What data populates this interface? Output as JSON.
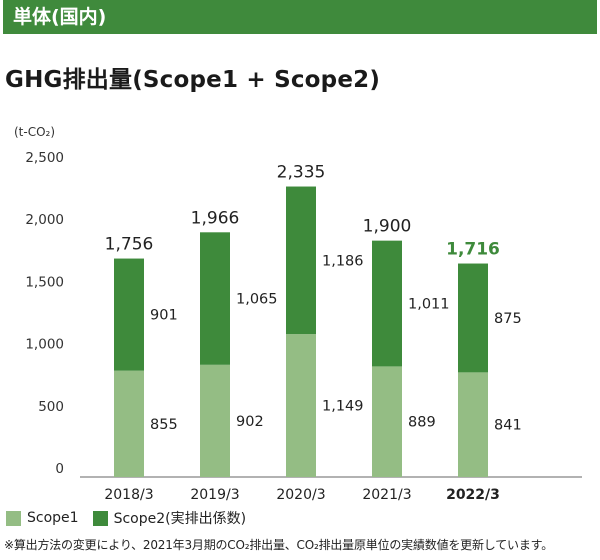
{
  "header": {
    "label": "単体(国内)"
  },
  "chart_data": {
    "type": "bar",
    "stacked": true,
    "title": "GHG排出量(Scope1 + Scope2)",
    "unit_label": "(t-CO₂)",
    "categories": [
      "2018/3",
      "2019/3",
      "2020/3",
      "2021/3",
      "2022/3"
    ],
    "series": [
      {
        "name": "Scope1",
        "values": [
          855,
          902,
          1149,
          889,
          841
        ],
        "color": "#94bd84"
      },
      {
        "name": "Scope2(実排出係数)",
        "values": [
          901,
          1065,
          1186,
          1011,
          875
        ],
        "color": "#3e8a3b"
      }
    ],
    "totals": [
      1756,
      1966,
      2335,
      1900,
      1716
    ],
    "total_labels": [
      "1,756",
      "1,966",
      "2,335",
      "1,900",
      "1,716"
    ],
    "value_labels": [
      [
        "855",
        "902",
        "1,149",
        "889",
        "841"
      ],
      [
        "901",
        "1,065",
        "1,186",
        "1,011",
        "875"
      ]
    ],
    "highlight_index": 4,
    "highlight_color": "#3e8a3b",
    "ylim": [
      0,
      2500
    ],
    "yticks": [
      0,
      500,
      1000,
      1500,
      2000,
      2500
    ],
    "ytick_labels": [
      "0",
      "500",
      "1,000",
      "1,500",
      "2,000",
      "2,500"
    ],
    "grid": false,
    "legend_position": "bottom-left"
  },
  "footnote": "※算出方法の変更により、2021年3月期のCO₂排出量、CO₂排出量原単位の実績数値を更新しています。"
}
